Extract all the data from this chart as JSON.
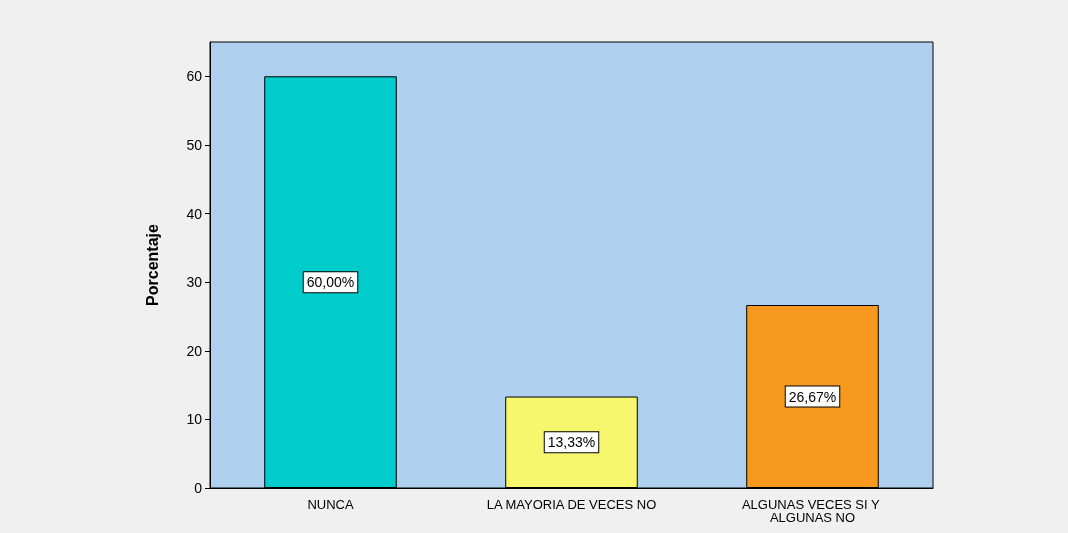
{
  "chart_data": {
    "type": "bar",
    "ylabel": "Porcentaje",
    "categories": [
      "NUNCA",
      "LA MAYORIA DE VECES NO",
      "ALGUNAS VECES SI Y ALGUNAS NO"
    ],
    "values": [
      60,
      13.33,
      26.67
    ],
    "colors": [
      "#00cccc",
      "#f7f76e",
      "#f7991e"
    ],
    "value_labels": [
      "60,00%",
      "13,33%",
      "26,67%"
    ],
    "ylim": [
      0,
      65
    ],
    "yticks": [
      0,
      10,
      20,
      30,
      40,
      50,
      60
    ],
    "grid": false
  }
}
